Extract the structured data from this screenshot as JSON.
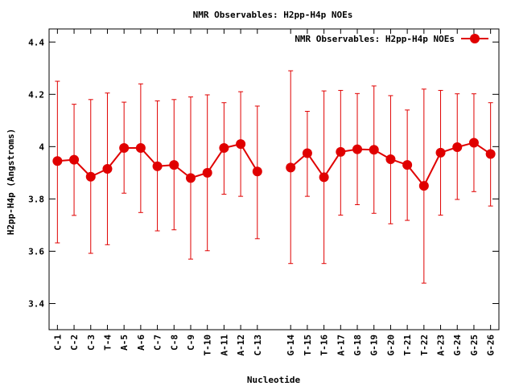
{
  "chart_data": {
    "type": "line",
    "title": "NMR Observables: H2pp-H4p NOEs",
    "xlabel": "Nucleotide",
    "ylabel": "H2pp-H4p (Angstroms)",
    "ylim": [
      3.3,
      4.45
    ],
    "y_ticks": [
      "3.4",
      "3.6",
      "3.8",
      "4",
      "4.2",
      "4.4"
    ],
    "y_tick_values": [
      3.4,
      3.6,
      3.8,
      4.0,
      4.2,
      4.4
    ],
    "grid": false,
    "legend_position": "top-right",
    "categories": [
      "C-1",
      "C-2",
      "C-3",
      "T-4",
      "A-5",
      "A-6",
      "C-7",
      "C-8",
      "C-9",
      "T-10",
      "A-11",
      "A-12",
      "C-13",
      "",
      "G-14",
      "T-15",
      "T-16",
      "A-17",
      "G-18",
      "G-19",
      "G-20",
      "T-21",
      "T-22",
      "A-23",
      "G-24",
      "G-25",
      "G-26"
    ],
    "series": [
      {
        "name": "NMR Observables: H2pp-H4p NOEs",
        "color": "#e00000",
        "values": [
          3.945,
          3.95,
          3.885,
          3.915,
          3.995,
          3.995,
          3.925,
          3.93,
          3.88,
          3.9,
          3.995,
          4.01,
          3.905,
          null,
          3.92,
          3.975,
          3.883,
          3.98,
          3.99,
          3.988,
          3.952,
          3.93,
          3.85,
          3.977,
          3.998,
          4.015,
          3.972
        ],
        "err_low": [
          3.632,
          3.737,
          3.592,
          3.625,
          3.822,
          3.748,
          3.678,
          3.682,
          3.57,
          3.602,
          3.818,
          3.81,
          3.648,
          null,
          3.553,
          3.81,
          3.553,
          3.738,
          3.778,
          3.745,
          3.705,
          3.718,
          3.478,
          3.738,
          3.798,
          3.828,
          3.773
        ],
        "err_high": [
          4.25,
          4.162,
          4.18,
          4.205,
          4.17,
          4.24,
          4.175,
          4.18,
          4.19,
          4.198,
          4.168,
          4.21,
          4.155,
          null,
          4.29,
          4.135,
          4.213,
          4.215,
          4.203,
          4.232,
          4.195,
          4.14,
          4.22,
          4.215,
          4.202,
          4.202,
          4.168
        ]
      }
    ]
  }
}
